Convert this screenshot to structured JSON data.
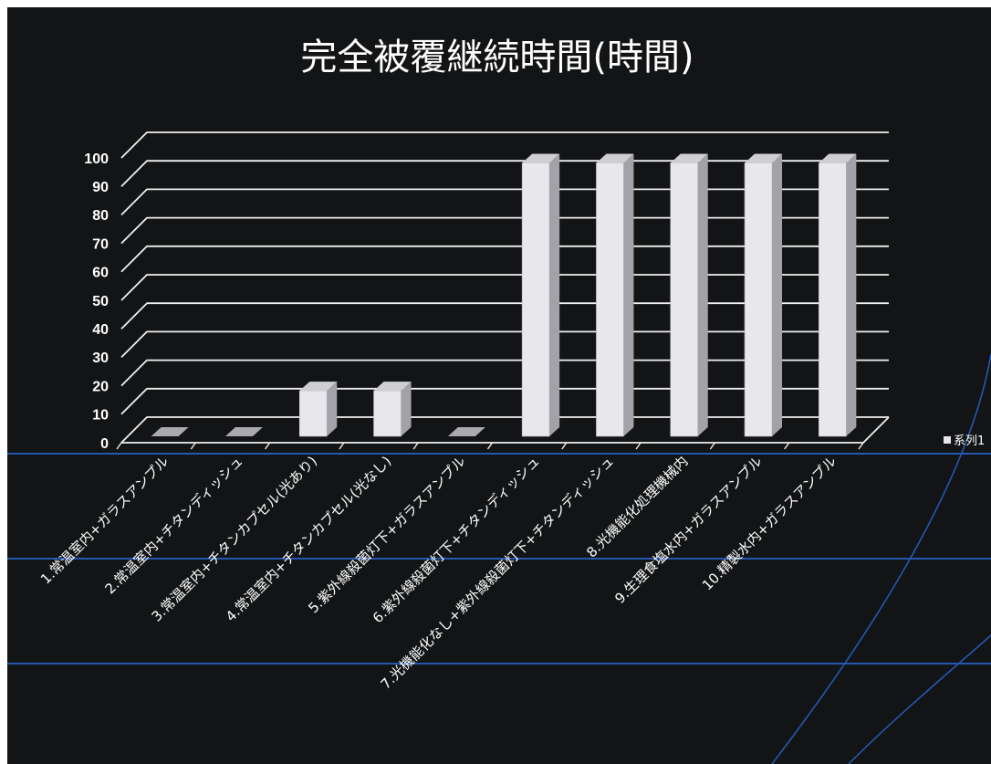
{
  "chart_data": {
    "type": "bar",
    "three_d": true,
    "title": "完全被覆継続時間(時間)",
    "categories": [
      "1.常温室内+ガラスアンプル",
      "2.常温室内+チタンディッシュ",
      "3.常温室内+チタンカプセル(光あり)",
      "4.常温室内+チタンカプセル(光なし)",
      "5.紫外線殺菌灯下+ガラスアンプル",
      "6.紫外線殺菌灯下+チタンディッシュ",
      "7.光機能化なし+紫外線殺菌灯下+チタンディッシュ",
      "8.光機能化処理機械内",
      "9.生理食塩水内+ガラスアンプル",
      "10.精製水内+ガラスアンプル"
    ],
    "series": [
      {
        "name": "系列1",
        "values": [
          0,
          0,
          16,
          16,
          0,
          96,
          96,
          96,
          96,
          96
        ]
      }
    ],
    "ylim": [
      0,
      100
    ],
    "yticks": [
      0,
      10,
      20,
      30,
      40,
      50,
      60,
      70,
      80,
      90,
      100
    ],
    "grid": true,
    "legend": "right"
  },
  "colors": {
    "background": "#121416",
    "text": "#ffffff",
    "grid": "#f0f0f0",
    "bar_front": "#e8e7eb",
    "bar_side": "#a2a2a8",
    "bar_top": "#cfcfd3",
    "bar_zero": "#a9a9ae",
    "bar_edge": "#bcbcc1",
    "decor_line": "#2458b0"
  }
}
